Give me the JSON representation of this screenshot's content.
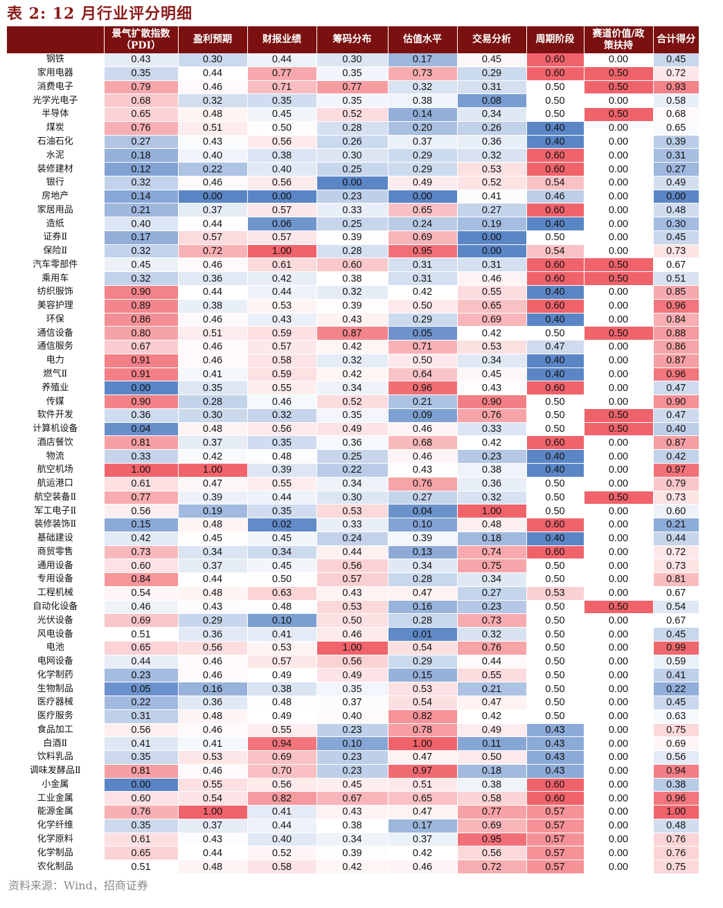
{
  "title": "表 2:  12 月行业评分明细",
  "columns": [
    "",
    "景气扩散指数\n（PDI）",
    "盈利预期",
    "财报业绩",
    "筹码分布",
    "估值水平",
    "交易分析",
    "周期阶段",
    "赛道价值/政\n策扶持",
    "合计得分"
  ],
  "rows": [
    {
      "name": "钢铁",
      "values": [
        "0.43",
        "0.30",
        "0.44",
        "0.30",
        "0.17",
        "0.45",
        "0.60",
        "0.00",
        "0.45"
      ]
    },
    {
      "name": "家用电器",
      "values": [
        "0.35",
        "0.44",
        "0.77",
        "0.35",
        "0.73",
        "0.29",
        "0.60",
        "0.50",
        "0.72"
      ]
    },
    {
      "name": "消费电子",
      "values": [
        "0.79",
        "0.46",
        "0.71",
        "0.77",
        "0.32",
        "0.31",
        "0.50",
        "0.50",
        "0.93"
      ]
    },
    {
      "name": "光学光电子",
      "values": [
        "0.68",
        "0.32",
        "0.35",
        "0.35",
        "0.38",
        "0.08",
        "0.50",
        "0.00",
        "0.58"
      ]
    },
    {
      "name": "半导体",
      "values": [
        "0.65",
        "0.48",
        "0.45",
        "0.52",
        "0.14",
        "0.34",
        "0.50",
        "0.50",
        "0.68"
      ]
    },
    {
      "name": "煤炭",
      "values": [
        "0.76",
        "0.51",
        "0.50",
        "0.28",
        "0.20",
        "0.26",
        "0.40",
        "0.00",
        "0.65"
      ]
    },
    {
      "name": "石油石化",
      "values": [
        "0.27",
        "0.43",
        "0.56",
        "0.26",
        "0.37",
        "0.36",
        "0.40",
        "0.00",
        "0.39"
      ]
    },
    {
      "name": "水泥",
      "values": [
        "0.18",
        "0.40",
        "0.38",
        "0.30",
        "0.29",
        "0.32",
        "0.60",
        "0.00",
        "0.31"
      ]
    },
    {
      "name": "装修建材",
      "values": [
        "0.12",
        "0.22",
        "0.40",
        "0.25",
        "0.29",
        "0.53",
        "0.60",
        "0.00",
        "0.27"
      ]
    },
    {
      "name": "银行",
      "values": [
        "0.32",
        "0.46",
        "0.56",
        "0.00",
        "0.49",
        "0.52",
        "0.54",
        "0.00",
        "0.49"
      ]
    },
    {
      "name": "房地产",
      "values": [
        "0.14",
        "0.00",
        "0.00",
        "0.23",
        "0.00",
        "0.41",
        "0.46",
        "0.00",
        "0.00"
      ]
    },
    {
      "name": "家居用品",
      "values": [
        "0.21",
        "0.37",
        "0.57",
        "0.33",
        "0.65",
        "0.27",
        "0.60",
        "0.00",
        "0.48"
      ]
    },
    {
      "name": "造纸",
      "values": [
        "0.40",
        "0.44",
        "0.06",
        "0.25",
        "0.24",
        "0.19",
        "0.40",
        "0.00",
        "0.30"
      ]
    },
    {
      "name": "证券Ⅱ",
      "values": [
        "0.17",
        "0.57",
        "0.57",
        "0.39",
        "0.69",
        "0.00",
        "0.50",
        "0.00",
        "0.45"
      ]
    },
    {
      "name": "保险Ⅱ",
      "values": [
        "0.32",
        "0.72",
        "1.00",
        "0.28",
        "0.95",
        "0.00",
        "0.54",
        "0.00",
        "0.73"
      ]
    },
    {
      "name": "汽车零部件",
      "values": [
        "0.45",
        "0.46",
        "0.61",
        "0.60",
        "0.31",
        "0.31",
        "0.60",
        "0.50",
        "0.67"
      ]
    },
    {
      "name": "乘用车",
      "values": [
        "0.32",
        "0.36",
        "0.42",
        "0.38",
        "0.31",
        "0.46",
        "0.60",
        "0.50",
        "0.51"
      ]
    },
    {
      "name": "纺织服饰",
      "values": [
        "0.90",
        "0.44",
        "0.44",
        "0.32",
        "0.42",
        "0.55",
        "0.40",
        "0.00",
        "0.85"
      ]
    },
    {
      "name": "美容护理",
      "values": [
        "0.89",
        "0.38",
        "0.53",
        "0.39",
        "0.50",
        "0.65",
        "0.60",
        "0.00",
        "0.96"
      ]
    },
    {
      "name": "环保",
      "values": [
        "0.86",
        "0.46",
        "0.43",
        "0.43",
        "0.29",
        "0.69",
        "0.40",
        "0.00",
        "0.84"
      ]
    },
    {
      "name": "通信设备",
      "values": [
        "0.80",
        "0.51",
        "0.59",
        "0.87",
        "0.05",
        "0.42",
        "0.50",
        "0.50",
        "0.88"
      ]
    },
    {
      "name": "通信服务",
      "values": [
        "0.67",
        "0.46",
        "0.57",
        "0.42",
        "0.71",
        "0.53",
        "0.47",
        "0.00",
        "0.86"
      ]
    },
    {
      "name": "电力",
      "values": [
        "0.91",
        "0.46",
        "0.58",
        "0.32",
        "0.50",
        "0.34",
        "0.40",
        "0.00",
        "0.87"
      ]
    },
    {
      "name": "燃气Ⅱ",
      "values": [
        "0.91",
        "0.41",
        "0.59",
        "0.42",
        "0.64",
        "0.45",
        "0.40",
        "0.00",
        "0.96"
      ]
    },
    {
      "name": "养殖业",
      "values": [
        "0.00",
        "0.35",
        "0.55",
        "0.34",
        "0.96",
        "0.43",
        "0.60",
        "0.00",
        "0.47"
      ]
    },
    {
      "name": "传媒",
      "values": [
        "0.90",
        "0.28",
        "0.46",
        "0.52",
        "0.21",
        "0.90",
        "0.50",
        "0.00",
        "0.90"
      ]
    },
    {
      "name": "软件开发",
      "values": [
        "0.36",
        "0.30",
        "0.32",
        "0.35",
        "0.09",
        "0.76",
        "0.50",
        "0.50",
        "0.47"
      ]
    },
    {
      "name": "计算机设备",
      "values": [
        "0.04",
        "0.48",
        "0.56",
        "0.49",
        "0.46",
        "0.33",
        "0.50",
        "0.50",
        "0.40"
      ]
    },
    {
      "name": "酒店餐饮",
      "values": [
        "0.81",
        "0.37",
        "0.35",
        "0.36",
        "0.68",
        "0.42",
        "0.60",
        "0.00",
        "0.87"
      ]
    },
    {
      "name": "物流",
      "values": [
        "0.33",
        "0.42",
        "0.48",
        "0.25",
        "0.46",
        "0.23",
        "0.40",
        "0.00",
        "0.42"
      ]
    },
    {
      "name": "航空机场",
      "values": [
        "1.00",
        "1.00",
        "0.39",
        "0.22",
        "0.43",
        "0.38",
        "0.40",
        "0.00",
        "0.97"
      ]
    },
    {
      "name": "航运港口",
      "values": [
        "0.61",
        "0.47",
        "0.55",
        "0.34",
        "0.76",
        "0.36",
        "0.50",
        "0.00",
        "0.79"
      ]
    },
    {
      "name": "航空装备Ⅱ",
      "values": [
        "0.77",
        "0.39",
        "0.44",
        "0.30",
        "0.27",
        "0.32",
        "0.50",
        "0.50",
        "0.73"
      ]
    },
    {
      "name": "军工电子Ⅱ",
      "values": [
        "0.56",
        "0.19",
        "0.35",
        "0.53",
        "0.04",
        "1.00",
        "0.50",
        "0.00",
        "0.60"
      ]
    },
    {
      "name": "装修装饰Ⅱ",
      "values": [
        "0.15",
        "0.48",
        "0.02",
        "0.33",
        "0.10",
        "0.48",
        "0.60",
        "0.00",
        "0.21"
      ]
    },
    {
      "name": "基础建设",
      "values": [
        "0.42",
        "0.45",
        "0.45",
        "0.24",
        "0.39",
        "0.18",
        "0.40",
        "0.00",
        "0.44"
      ]
    },
    {
      "name": "商贸零售",
      "values": [
        "0.73",
        "0.34",
        "0.34",
        "0.44",
        "0.13",
        "0.74",
        "0.60",
        "0.00",
        "0.72"
      ]
    },
    {
      "name": "通用设备",
      "values": [
        "0.60",
        "0.37",
        "0.45",
        "0.56",
        "0.34",
        "0.75",
        "0.50",
        "0.00",
        "0.73"
      ]
    },
    {
      "name": "专用设备",
      "values": [
        "0.84",
        "0.44",
        "0.50",
        "0.57",
        "0.28",
        "0.34",
        "0.50",
        "0.00",
        "0.81"
      ]
    },
    {
      "name": "工程机械",
      "values": [
        "0.54",
        "0.48",
        "0.63",
        "0.43",
        "0.47",
        "0.27",
        "0.53",
        "0.00",
        "0.67"
      ]
    },
    {
      "name": "自动化设备",
      "values": [
        "0.46",
        "0.43",
        "0.48",
        "0.53",
        "0.16",
        "0.23",
        "0.50",
        "0.50",
        "0.54"
      ]
    },
    {
      "name": "光伏设备",
      "values": [
        "0.69",
        "0.29",
        "0.10",
        "0.50",
        "0.28",
        "0.73",
        "0.50",
        "0.00",
        "0.67"
      ]
    },
    {
      "name": "风电设备",
      "values": [
        "0.51",
        "0.36",
        "0.41",
        "0.46",
        "0.01",
        "0.32",
        "0.50",
        "0.00",
        "0.45"
      ]
    },
    {
      "name": "电池",
      "values": [
        "0.65",
        "0.56",
        "0.53",
        "1.00",
        "0.54",
        "0.76",
        "0.50",
        "0.00",
        "0.99"
      ]
    },
    {
      "name": "电网设备",
      "values": [
        "0.44",
        "0.46",
        "0.57",
        "0.56",
        "0.29",
        "0.44",
        "0.50",
        "0.00",
        "0.59"
      ]
    },
    {
      "name": "化学制药",
      "values": [
        "0.23",
        "0.46",
        "0.49",
        "0.49",
        "0.15",
        "0.55",
        "0.50",
        "0.00",
        "0.41"
      ]
    },
    {
      "name": "生物制品",
      "values": [
        "0.05",
        "0.16",
        "0.38",
        "0.35",
        "0.53",
        "0.21",
        "0.50",
        "0.00",
        "0.22"
      ]
    },
    {
      "name": "医疗器械",
      "values": [
        "0.22",
        "0.36",
        "0.48",
        "0.37",
        "0.54",
        "0.47",
        "0.50",
        "0.00",
        "0.45"
      ]
    },
    {
      "name": "医疗服务",
      "values": [
        "0.31",
        "0.48",
        "0.49",
        "0.40",
        "0.82",
        "0.42",
        "0.50",
        "0.00",
        "0.63"
      ]
    },
    {
      "name": "食品加工",
      "values": [
        "0.56",
        "0.46",
        "0.55",
        "0.23",
        "0.78",
        "0.49",
        "0.43",
        "0.00",
        "0.75"
      ]
    },
    {
      "name": "白酒Ⅱ",
      "values": [
        "0.41",
        "0.41",
        "0.94",
        "0.10",
        "1.00",
        "0.11",
        "0.43",
        "0.00",
        "0.69"
      ]
    },
    {
      "name": "饮料乳品",
      "values": [
        "0.35",
        "0.53",
        "0.69",
        "0.23",
        "0.47",
        "0.50",
        "0.43",
        "0.00",
        "0.56"
      ]
    },
    {
      "name": "调味发酵品Ⅱ",
      "values": [
        "0.81",
        "0.46",
        "0.70",
        "0.23",
        "0.97",
        "0.18",
        "0.43",
        "0.00",
        "0.94"
      ]
    },
    {
      "name": "小金属",
      "values": [
        "0.00",
        "0.55",
        "0.56",
        "0.45",
        "0.51",
        "0.38",
        "0.60",
        "0.00",
        "0.38"
      ]
    },
    {
      "name": "工业金属",
      "values": [
        "0.60",
        "0.54",
        "0.82",
        "0.67",
        "0.65",
        "0.58",
        "0.60",
        "0.00",
        "0.96"
      ]
    },
    {
      "name": "能源金属",
      "values": [
        "0.76",
        "1.00",
        "0.41",
        "0.43",
        "0.47",
        "0.77",
        "0.57",
        "0.00",
        "1.00"
      ]
    },
    {
      "name": "化学纤维",
      "values": [
        "0.35",
        "0.37",
        "0.44",
        "0.38",
        "0.17",
        "0.69",
        "0.57",
        "0.00",
        "0.48"
      ]
    },
    {
      "name": "化学原料",
      "values": [
        "0.61",
        "0.43",
        "0.40",
        "0.34",
        "0.37",
        "0.95",
        "0.57",
        "0.00",
        "0.76"
      ]
    },
    {
      "name": "化学制品",
      "values": [
        "0.65",
        "0.44",
        "0.52",
        "0.39",
        "0.42",
        "0.56",
        "0.57",
        "0.00",
        "0.76"
      ]
    },
    {
      "name": "农化制品",
      "values": [
        "0.51",
        "0.48",
        "0.58",
        "0.42",
        "0.46",
        "0.72",
        "0.57",
        "0.00",
        "0.75"
      ]
    }
  ],
  "source": "资料来源：Wind，招商证券",
  "colors": {
    "header_bg": "#7b1010",
    "high": "#f0636b",
    "mid": "#ffffff",
    "low": "#5b86c6",
    "title": "#8b1a1a"
  }
}
